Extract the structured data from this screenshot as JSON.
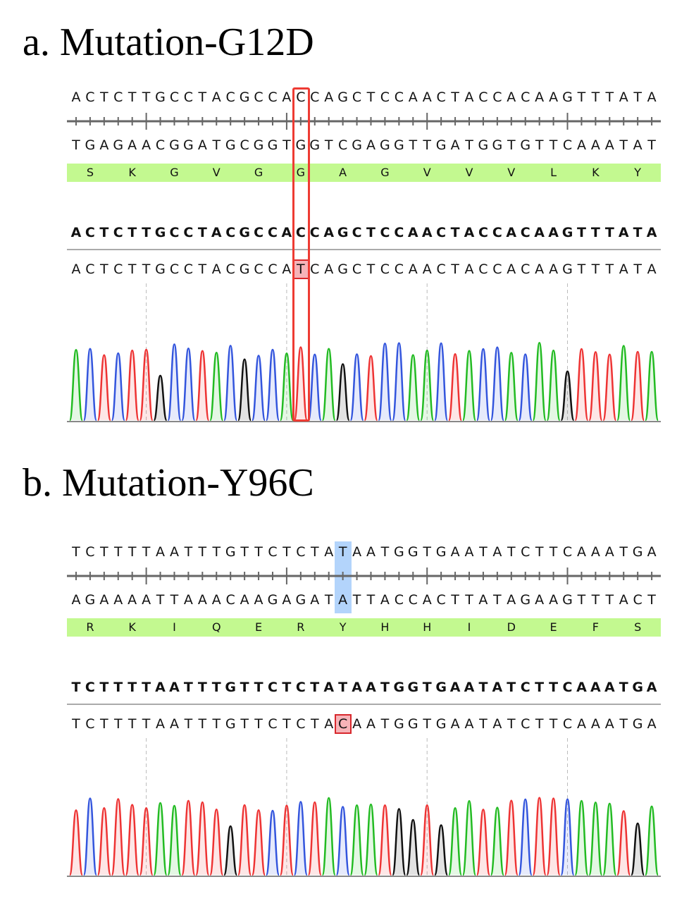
{
  "panels": [
    {
      "title": "a. Mutation-G12D",
      "forward": "ACTCTTGCCTACGCCACCAGCTCCAACTACCACAAGTTTATA",
      "reverse": "TGAGAACGGATGCGGTGGTCGAGGTTGATGGTGTTCAAATAT",
      "amino_acids": [
        "S",
        "K",
        "G",
        "V",
        "G",
        "G",
        "A",
        "G",
        "V",
        "V",
        "V",
        "L",
        "K",
        "Y"
      ],
      "reference": "ACTCTTGCCTACGCCACCAGCTCCAACTACCACAAGTTTATA",
      "sample": "ACTCTTGCCTACGCCATCAGCTCCAACTACCACAAGTTTATA",
      "mutation_index": 16,
      "highlight_style": "red-frame"
    },
    {
      "title": "b. Mutation-Y96C",
      "forward": "TCTTTTAATTTGTTCTCTATAATGGTGAATATCTTCAAATGA",
      "reverse": "AGAAAATTAAACAAGAGATATTACCACTTATAGAAGTTTACT",
      "amino_acids": [
        "R",
        "K",
        "I",
        "Q",
        "E",
        "R",
        "Y",
        "H",
        "H",
        "I",
        "D",
        "E",
        "F",
        "S"
      ],
      "reference": "TCTTTTAATTTGTTCTCTATAATGGTGAATATCTTCAAATGA",
      "sample": "TCTTTTAATTTGTTCTCTACAATGGTGAATATCTTCAAATGA",
      "mutation_index": 19,
      "highlight_style": "blue-column"
    }
  ],
  "colors": {
    "A": "#22bb22",
    "C": "#3355dd",
    "G": "#111111",
    "T": "#ee3333",
    "aa_band": "#c3f990",
    "mutation": "#d8282c",
    "highlight": "#b3d4fb"
  }
}
